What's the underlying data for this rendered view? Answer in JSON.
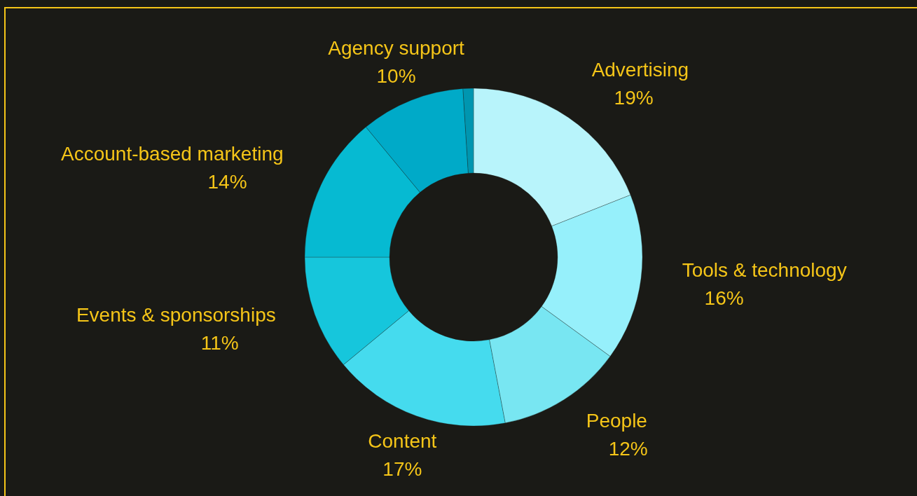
{
  "chart_data": {
    "type": "donut",
    "categories": [
      "Advertising",
      "Tools & technology",
      "People",
      "Content",
      "Events & sponsorships",
      "Account-based marketing",
      "Agency support",
      null
    ],
    "values": [
      19,
      16,
      12,
      17,
      11,
      14,
      10,
      1
    ],
    "colors": [
      "#b8f4fb",
      "#96f0fb",
      "#78e6f2",
      "#45dbee",
      "#16c6dc",
      "#06bad2",
      "#00aac8",
      "#0096b0"
    ],
    "value_labels": [
      "19%",
      "16%",
      "12%",
      "17%",
      "11%",
      "14%",
      "10%",
      null
    ]
  }
}
